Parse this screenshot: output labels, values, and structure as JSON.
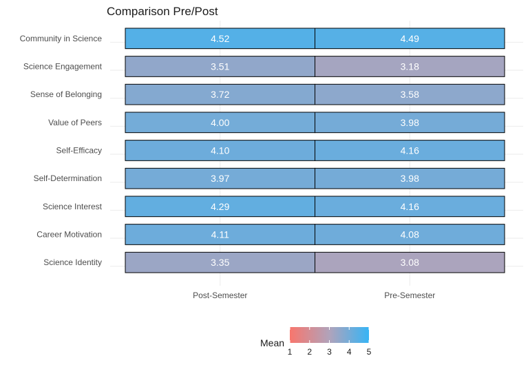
{
  "chart_data": {
    "type": "heatmap",
    "title": "Comparison Pre/Post",
    "xlabel": "",
    "ylabel": "",
    "x": [
      "Post-Semester",
      "Pre-Semester"
    ],
    "y": [
      "Community in Science",
      "Science Engagement",
      "Sense of Belonging",
      "Value of Peers",
      "Self-Efficacy",
      "Self-Determination",
      "Science Interest",
      "Career Motivation",
      "Science Identity"
    ],
    "values": [
      [
        4.52,
        4.49
      ],
      [
        3.51,
        3.18
      ],
      [
        3.72,
        3.58
      ],
      [
        4.0,
        3.98
      ],
      [
        4.1,
        4.16
      ],
      [
        3.97,
        3.98
      ],
      [
        4.29,
        4.16
      ],
      [
        4.11,
        4.08
      ],
      [
        3.35,
        3.08
      ]
    ],
    "value_labels": [
      [
        "4.52",
        "4.49"
      ],
      [
        "3.51",
        "3.18"
      ],
      [
        "3.72",
        "3.58"
      ],
      [
        "4.00",
        "3.98"
      ],
      [
        "4.10",
        "4.16"
      ],
      [
        "3.97",
        "3.98"
      ],
      [
        "4.29",
        "4.16"
      ],
      [
        "4.11",
        "4.08"
      ],
      [
        "3.35",
        "3.08"
      ]
    ],
    "legend": {
      "title": "Mean",
      "position": "bottom",
      "range": [
        1,
        5
      ],
      "ticks": [
        "1",
        "2",
        "3",
        "4",
        "5"
      ],
      "low_color": "#F8766D",
      "mid_color": "#B0A3BB",
      "high_color": "#37B4F5"
    },
    "grid": true
  }
}
